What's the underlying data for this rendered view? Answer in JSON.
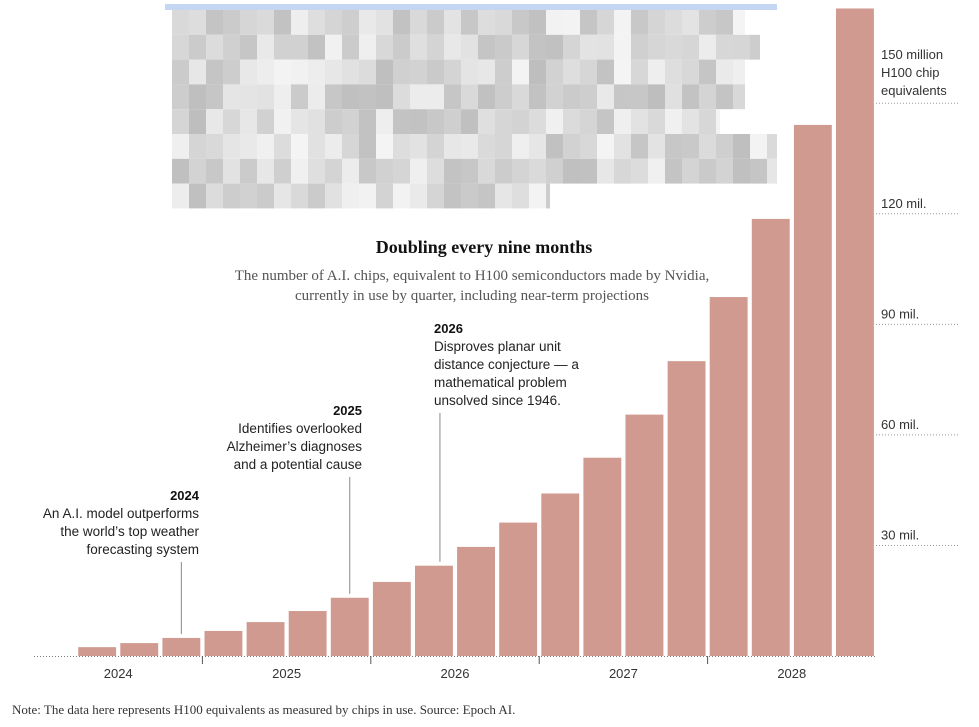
{
  "chart_data": {
    "type": "bar",
    "title": "Doubling every nine months",
    "subtitle": [
      "The number of A.I. chips, equivalent to H100 semiconductors made by Nvidia,",
      "currently in use by quarter, including near-term projections"
    ],
    "note": "Note: The data here represents H100 equivalents as measured by chips in use. Source: Epoch AI.",
    "color": "#d09a90",
    "x": [
      2024.375,
      2024.625,
      2024.875,
      2025.125,
      2025.375,
      2025.625,
      2025.875,
      2026.125,
      2026.375,
      2026.625,
      2026.875,
      2027.125,
      2027.375,
      2027.625,
      2027.875,
      2028.125,
      2028.375,
      2028.625,
      2028.875
    ],
    "values": [
      2.4,
      3.5,
      4.9,
      6.8,
      9.2,
      12.2,
      15.8,
      20.1,
      24.5,
      29.6,
      36.2,
      44.1,
      53.8,
      65.5,
      80.0,
      97.4,
      118.6,
      144.1,
      175.7
    ],
    "xlim": [
      2024,
      2029
    ],
    "xticks": [
      {
        "value": 2024.5,
        "label": "2024"
      },
      {
        "value": 2025.5,
        "label": "2025"
      },
      {
        "value": 2026.5,
        "label": "2026"
      },
      {
        "value": 2027.5,
        "label": "2027"
      },
      {
        "value": 2028.5,
        "label": "2028"
      }
    ],
    "ylim": [
      0,
      178
    ],
    "yticks": [
      {
        "value": 30,
        "label": "30 mil."
      },
      {
        "value": 60,
        "label": "60 mil."
      },
      {
        "value": 90,
        "label": "90 mil."
      },
      {
        "value": 120,
        "label": "120 mil."
      },
      {
        "value": 150,
        "label": [
          "150 million",
          "H100 chip",
          "equivalents"
        ]
      }
    ],
    "grid": true,
    "annotations": [
      {
        "x": 2024.875,
        "year": "2024",
        "lines": [
          "An A.I. model outperforms",
          "the world’s top weather",
          "forecasting system"
        ]
      },
      {
        "x": 2025.875,
        "year": "2025",
        "lines": [
          "Identifies overlooked",
          "Alzheimer’s diagnoses",
          "and a potential cause"
        ]
      },
      {
        "x": 2026.375,
        "year": "2026",
        "lines": [
          "Disproves planar unit",
          "distance conjecture — a",
          "mathematical problem",
          "unsolved since 1946."
        ]
      }
    ]
  }
}
